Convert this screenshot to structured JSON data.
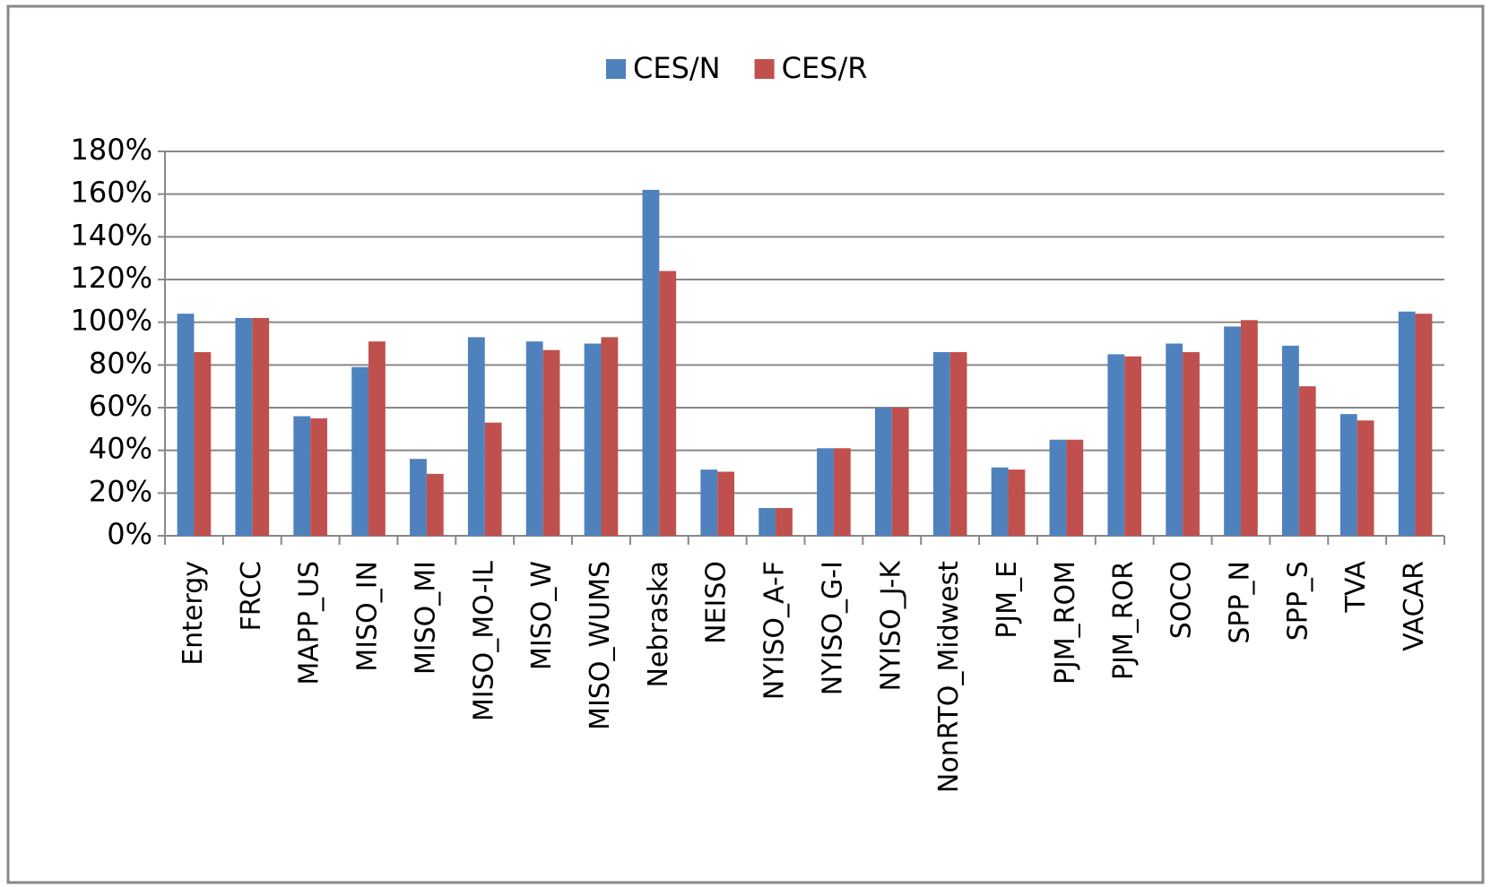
{
  "chart_data": {
    "type": "bar",
    "categories": [
      "Entergy",
      "FRCC",
      "MAPP_US",
      "MISO_IN",
      "MISO_MI",
      "MISO_MO-IL",
      "MISO_W",
      "MISO_WUMS",
      "Nebraska",
      "NEISO",
      "NYISO_A-F",
      "NYISO_G-I",
      "NYISO_J-K",
      "NonRTO_Midwest",
      "PJM_E",
      "PJM_ROM",
      "PJM_ROR",
      "SOCO",
      "SPP_N",
      "SPP_S",
      "TVA",
      "VACAR"
    ],
    "series": [
      {
        "name": "CES/N",
        "color": "#4f81bd",
        "values": [
          104,
          102,
          56,
          79,
          36,
          93,
          91,
          90,
          162,
          31,
          13,
          41,
          60,
          86,
          32,
          45,
          85,
          90,
          98,
          89,
          57,
          105
        ]
      },
      {
        "name": "CES/R",
        "color": "#c0504d",
        "values": [
          86,
          102,
          55,
          91,
          29,
          53,
          87,
          93,
          124,
          30,
          13,
          41,
          60,
          86,
          31,
          45,
          84,
          86,
          101,
          70,
          54,
          104
        ]
      }
    ],
    "ylim": [
      0,
      180
    ],
    "yticks": [
      {
        "value": 0,
        "label": "0%"
      },
      {
        "value": 20,
        "label": "20%"
      },
      {
        "value": 40,
        "label": "40%"
      },
      {
        "value": 60,
        "label": "60%"
      },
      {
        "value": 80,
        "label": "80%"
      },
      {
        "value": 100,
        "label": "100%"
      },
      {
        "value": 120,
        "label": "120%"
      },
      {
        "value": 140,
        "label": "140%"
      },
      {
        "value": 160,
        "label": "160%"
      },
      {
        "value": 180,
        "label": "180%"
      }
    ],
    "grid": true,
    "legend": "top"
  }
}
